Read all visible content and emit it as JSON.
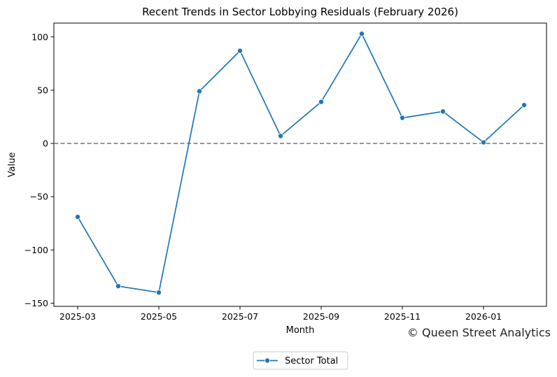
{
  "chart_data": {
    "type": "line",
    "title": "Recent Trends in Sector Lobbying Residuals (February 2026)",
    "xlabel": "Month",
    "ylabel": "Value",
    "x": [
      "2025-03",
      "2025-04",
      "2025-05",
      "2025-06",
      "2025-07",
      "2025-08",
      "2025-09",
      "2025-10",
      "2025-11",
      "2025-12",
      "2026-01",
      "2026-02"
    ],
    "series": [
      {
        "name": "Sector Total",
        "values": [
          -69,
          -134,
          -140,
          49,
          87,
          7,
          39,
          103,
          24,
          30,
          1,
          36
        ]
      }
    ],
    "x_ticks": [
      "2025-03",
      "2025-05",
      "2025-07",
      "2025-09",
      "2025-11",
      "2026-01"
    ],
    "y_ticks": [
      100,
      50,
      0,
      -50,
      -100,
      -150
    ],
    "y_tick_labels": [
      "100",
      "50",
      "0",
      "−50",
      "−100",
      "−150"
    ],
    "ylim": [
      -153,
      113
    ],
    "reference_line": {
      "y": 0,
      "style": "dashed",
      "color": "#808080"
    },
    "line_color": "#1f77b4",
    "marker": "circle",
    "grid": false,
    "legend_position": "bottom-center"
  },
  "credit": "© Queen Street Analytics"
}
